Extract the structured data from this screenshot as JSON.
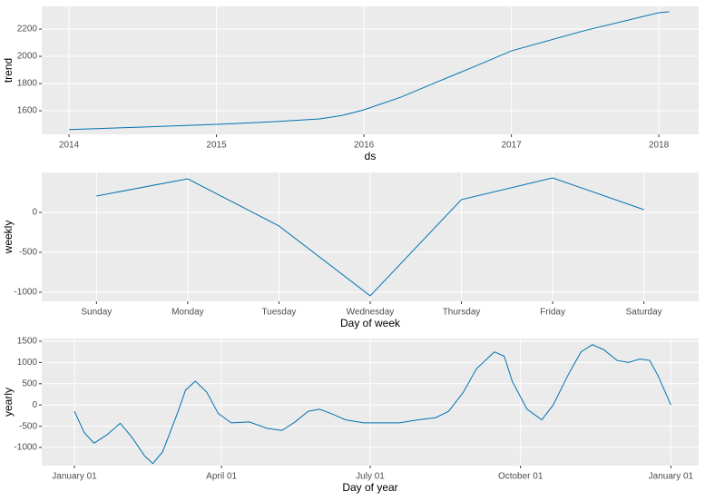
{
  "chart_data": [
    {
      "type": "line",
      "xlabel": "ds",
      "ylabel": "trend",
      "x": [
        2014.0,
        2014.5,
        2015.0,
        2015.4,
        2015.7,
        2015.85,
        2016.0,
        2016.25,
        2016.5,
        2016.75,
        2017.0,
        2017.5,
        2018.0,
        2018.07
      ],
      "series": [
        {
          "name": "trend",
          "color": "#0072B2",
          "values": [
            1462,
            1480,
            1500,
            1520,
            1540,
            1565,
            1607,
            1700,
            1813,
            1925,
            2040,
            2190,
            2320,
            2327
          ]
        }
      ],
      "xlim": [
        2013.815,
        2018.27
      ],
      "xticks": [
        2014,
        2015,
        2016,
        2017,
        2018
      ],
      "ylim": [
        1427,
        2367
      ],
      "yticks": [
        1600,
        1800,
        2000,
        2200
      ],
      "grid": true
    },
    {
      "type": "line",
      "xlabel": "Day of week",
      "ylabel": "weekly",
      "categories": [
        "Sunday",
        "Monday",
        "Tuesday",
        "Wednesday",
        "Thursday",
        "Friday",
        "Saturday"
      ],
      "series": [
        {
          "name": "weekly",
          "color": "#0072B2",
          "values": [
            205,
            420,
            -170,
            -1045,
            160,
            432,
            34
          ]
        }
      ],
      "ylim": [
        -1114,
        500
      ],
      "yticks": [
        0,
        -500,
        -1000
      ],
      "grid": true
    },
    {
      "type": "line",
      "xlabel": "Day of year",
      "ylabel": "yearly",
      "x": [
        0,
        6,
        12,
        20,
        28,
        35,
        43,
        48,
        54,
        63,
        68,
        74,
        81,
        88,
        96,
        107,
        118,
        127,
        135,
        143,
        150,
        157,
        166,
        177,
        188,
        199,
        210,
        221,
        229,
        238,
        246,
        257,
        263,
        268,
        277,
        286,
        293,
        302,
        310,
        317,
        324,
        332,
        339,
        346,
        352,
        357,
        365
      ],
      "series": [
        {
          "name": "yearly",
          "color": "#0072B2",
          "values": [
            -150,
            -650,
            -900,
            -700,
            -430,
            -750,
            -1200,
            -1380,
            -1100,
            -200,
            350,
            560,
            300,
            -200,
            -420,
            -400,
            -550,
            -600,
            -400,
            -150,
            -100,
            -200,
            -350,
            -420,
            -420,
            -420,
            -350,
            -300,
            -150,
            300,
            850,
            1250,
            1150,
            550,
            -100,
            -350,
            0,
            700,
            1250,
            1420,
            1300,
            1050,
            1000,
            1080,
            1050,
            700,
            0
          ]
        }
      ],
      "xlim": [
        -20,
        382
      ],
      "xticks": [
        {
          "value": 0,
          "label": "January 01"
        },
        {
          "value": 90,
          "label": "April 01"
        },
        {
          "value": 181,
          "label": "July 01"
        },
        {
          "value": 273,
          "label": "October 01"
        },
        {
          "value": 365,
          "label": "January 01"
        }
      ],
      "ylim": [
        -1427,
        1564
      ],
      "yticks": [
        1500,
        1000,
        500,
        0,
        -500,
        -1000
      ],
      "grid": true
    }
  ]
}
